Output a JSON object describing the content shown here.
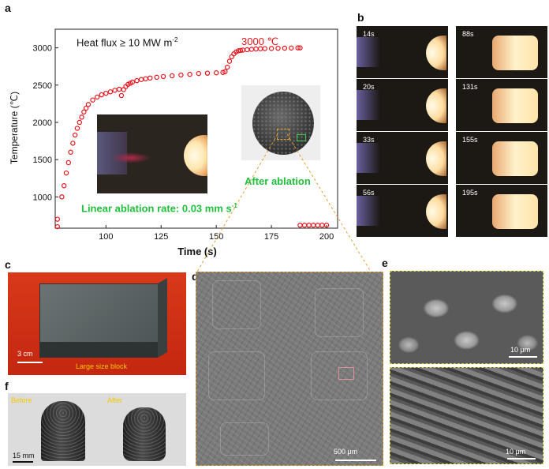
{
  "panels": {
    "a": "a",
    "b": "b",
    "c": "c",
    "d": "d",
    "e": "e",
    "f": "f"
  },
  "panel_a": {
    "heat_flux_label": "Heat flux ≥ 10 MW m",
    "heat_flux_superscript": "-2",
    "peak_label": "3000 ℃",
    "after_ablation_label": "After ablation",
    "linear_rate_label": "Linear ablation rate: 0.03 mm s",
    "linear_rate_superscript": "-1",
    "line_color": "#e8141c",
    "annotation_green": "#22c03c"
  },
  "chart_data": {
    "type": "scatter",
    "xlabel": "Time (s)",
    "ylabel": "Temperature (℃)",
    "xlim": [
      77,
      205
    ],
    "ylim": [
      580,
      3250
    ],
    "xticks": [
      100,
      125,
      150,
      175,
      200
    ],
    "yticks": [
      1000,
      1500,
      2000,
      2500,
      3000
    ],
    "series": [
      {
        "x": [
          78,
          78,
          80,
          81,
          82,
          83,
          84,
          85,
          86,
          87,
          88,
          89,
          90,
          91,
          92,
          94,
          96,
          98,
          100,
          102,
          104,
          106,
          107,
          108,
          109,
          110,
          111,
          112,
          114,
          116,
          118,
          120,
          123,
          126,
          130,
          134,
          138,
          142,
          146,
          150,
          153,
          154,
          155,
          156,
          157,
          158,
          159,
          160,
          161,
          162,
          164,
          166,
          168,
          170,
          172,
          175,
          178,
          181,
          184,
          187,
          188,
          188,
          190,
          192,
          194,
          196,
          198,
          200
        ],
        "y": [
          600,
          700,
          1000,
          1150,
          1320,
          1460,
          1600,
          1720,
          1830,
          1920,
          2000,
          2070,
          2140,
          2190,
          2240,
          2300,
          2340,
          2370,
          2390,
          2410,
          2430,
          2445,
          2360,
          2440,
          2480,
          2510,
          2525,
          2540,
          2560,
          2575,
          2585,
          2595,
          2605,
          2615,
          2625,
          2635,
          2645,
          2655,
          2660,
          2665,
          2670,
          2680,
          2740,
          2820,
          2880,
          2920,
          2945,
          2960,
          2965,
          2970,
          2975,
          2980,
          2985,
          2988,
          2990,
          2992,
          2994,
          2996,
          2998,
          3000,
          3000,
          620,
          620,
          620,
          620,
          620,
          620,
          620
        ]
      }
    ]
  },
  "panel_b": {
    "left_frames": [
      "14s",
      "20s",
      "33s",
      "56s"
    ],
    "right_frames": [
      "88s",
      "131s",
      "155s",
      "195s"
    ]
  },
  "panel_c": {
    "scale_label": "3 cm",
    "caption": "Large size block",
    "caption_color": "#f5c800"
  },
  "panel_d": {
    "scale_label": "500 μm"
  },
  "panel_e": {
    "top_scale_label": "10 μm",
    "bottom_scale_label": "10 μm"
  },
  "panel_f": {
    "before_label": "Before",
    "after_label": "After",
    "scale_label": "15 mm",
    "label_color": "#f5c800"
  }
}
